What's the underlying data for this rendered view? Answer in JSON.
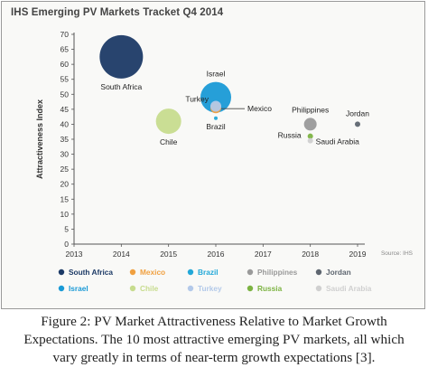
{
  "chart_data": {
    "type": "scatter",
    "title": "IHS Emerging PV Markets Tracket Q4 2014",
    "xlabel": "",
    "ylabel": "Attractiveness Index",
    "xlim": [
      2013,
      2019
    ],
    "ylim": [
      0,
      70
    ],
    "x_ticks": [
      "2013",
      "2014",
      "2015",
      "2016",
      "2017",
      "2018",
      "2019"
    ],
    "y_ticks": [
      "0",
      "5",
      "10",
      "15",
      "20",
      "25",
      "30",
      "35",
      "40",
      "45",
      "50",
      "55",
      "60",
      "65",
      "70"
    ],
    "grid": false,
    "legend_position": "bottom",
    "source": "Source: IHS",
    "series": [
      {
        "name": "South Africa",
        "x": 2014,
        "y": 62.5,
        "size": 24,
        "color": "#1c3a66",
        "label_pos": "below"
      },
      {
        "name": "Mexico",
        "x": 2016,
        "y": 45.5,
        "size": 6,
        "color": "#f0a040",
        "label_pos": "right"
      },
      {
        "name": "Brazil",
        "x": 2016,
        "y": 42.0,
        "size": 2,
        "color": "#22a8d8",
        "label_pos": "below"
      },
      {
        "name": "Philippines",
        "x": 2018,
        "y": 40.0,
        "size": 7,
        "color": "#9a9a9a",
        "label_pos": "above"
      },
      {
        "name": "Jordan",
        "x": 2019,
        "y": 40.0,
        "size": 3,
        "color": "#5e6670",
        "label_pos": "above"
      },
      {
        "name": "Israel",
        "x": 2016,
        "y": 49.0,
        "size": 17,
        "color": "#1a9ad6",
        "label_pos": "above"
      },
      {
        "name": "Chile",
        "x": 2015,
        "y": 41.0,
        "size": 14,
        "color": "#c7dc8e",
        "label_pos": "below"
      },
      {
        "name": "Turkey",
        "x": 2016,
        "y": 46.0,
        "size": 6,
        "color": "#b3c9e9",
        "label_pos": "left"
      },
      {
        "name": "Russia",
        "x": 2018,
        "y": 36.0,
        "size": 3,
        "color": "#7cb342",
        "label_pos": "left"
      },
      {
        "name": "Saudi Arabia",
        "x": 2018,
        "y": 34.5,
        "size": 3,
        "color": "#d0d0d0",
        "label_pos": "right"
      }
    ],
    "legend": [
      "South Africa",
      "Mexico",
      "Brazil",
      "Philippines",
      "Jordan",
      "Israel",
      "Chile",
      "Turkey",
      "Russia",
      "Saudi Arabia"
    ]
  },
  "caption": {
    "line1": "Figure 2: PV Market Attractiveness Relative to Market Growth",
    "line2": "Expectations. The 10 most attractive emerging PV markets, all which",
    "line3": "vary greatly in terms of near-term growth expectations [3]."
  },
  "colors": {
    "axis": "#555555",
    "label_text": "#222222",
    "connector": "#444444"
  }
}
